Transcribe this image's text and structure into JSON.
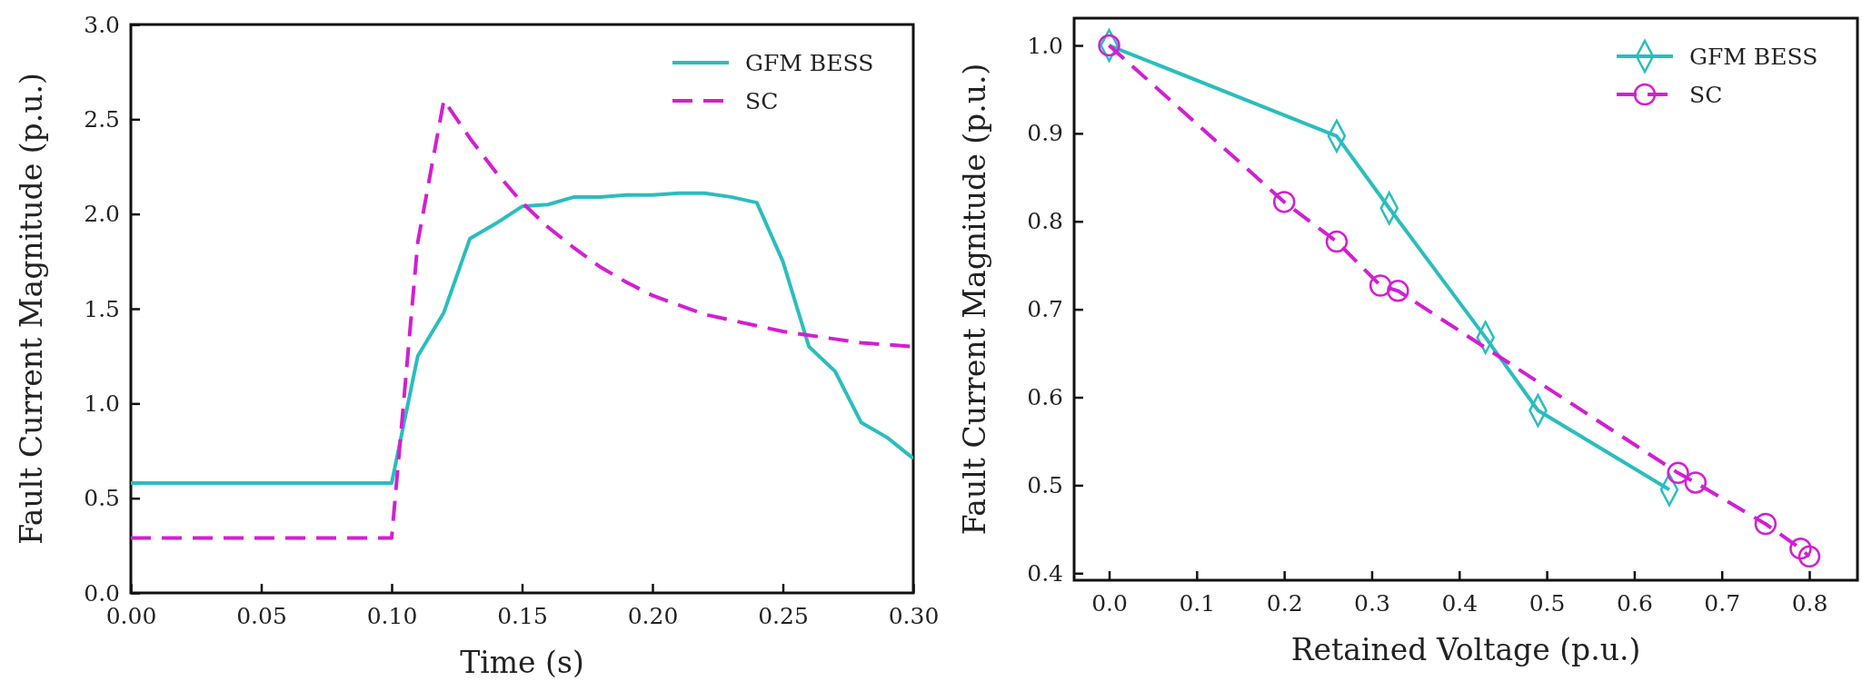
{
  "chart_data": [
    {
      "type": "line",
      "xlabel": "Time (s)",
      "ylabel": "Fault Current Magnitude (p.u.)",
      "xlim": [
        0,
        0.3
      ],
      "ylim": [
        0,
        3
      ],
      "xticks": [
        {
          "value": 0,
          "label": "0.00"
        },
        0.05,
        {
          "value": 0.1,
          "label": "0.10"
        },
        0.15,
        {
          "value": 0.2,
          "label": "0.20"
        },
        0.25,
        {
          "value": 0.3,
          "label": "0.30"
        }
      ],
      "yticks": [
        {
          "value": 0,
          "label": "0.0"
        },
        0.5,
        {
          "value": 1,
          "label": "1.0"
        },
        1.5,
        {
          "value": 2,
          "label": "2.0"
        },
        2.5,
        {
          "value": 3,
          "label": "3.0"
        }
      ],
      "grid": false,
      "legend": "top right",
      "marker": "none",
      "series": [
        {
          "name": "GFM BESS",
          "color": "#2bbdbd",
          "line_style": "solid",
          "x": [
            0,
            0.1,
            0.11,
            0.12,
            0.13,
            0.14,
            0.15,
            0.16,
            0.17,
            0.18,
            0.19,
            0.2,
            0.21,
            0.22,
            0.23,
            0.24,
            0.25,
            0.26,
            0.27,
            0.28,
            0.29,
            0.3
          ],
          "values": [
            0.58,
            0.58,
            1.25,
            1.48,
            1.87,
            1.95,
            2.04,
            2.05,
            2.09,
            2.09,
            2.1,
            2.1,
            2.11,
            2.11,
            2.09,
            2.06,
            1.75,
            1.3,
            1.17,
            0.9,
            0.82,
            0.71
          ]
        },
        {
          "name": "SC",
          "color": "#d21fd2",
          "line_style": "dashed",
          "x": [
            0,
            0.1,
            0.11,
            0.12,
            0.13,
            0.14,
            0.15,
            0.16,
            0.17,
            0.18,
            0.19,
            0.2,
            0.21,
            0.22,
            0.23,
            0.24,
            0.25,
            0.26,
            0.27,
            0.28,
            0.29,
            0.3
          ],
          "values": [
            0.29,
            0.29,
            1.85,
            2.6,
            2.4,
            2.22,
            2.06,
            1.93,
            1.82,
            1.72,
            1.64,
            1.57,
            1.52,
            1.47,
            1.44,
            1.41,
            1.38,
            1.36,
            1.34,
            1.32,
            1.31,
            1.3
          ]
        }
      ]
    },
    {
      "type": "line",
      "xlabel": "Retained Voltage (p.u.)",
      "ylabel": "Fault Current Magnitude (p.u.)",
      "xlim": [
        -0.04,
        0.855
      ],
      "ylim": [
        0.392,
        1.031
      ],
      "xticks": [
        {
          "value": 0,
          "label": "0.0"
        },
        0.1,
        0.2,
        0.3,
        0.4,
        0.5,
        0.6,
        0.7,
        0.8
      ],
      "yticks": [
        0.4,
        0.5,
        0.6,
        0.7,
        0.8,
        0.9,
        {
          "value": 1,
          "label": "1.0"
        }
      ],
      "grid": false,
      "legend": "top right",
      "series": [
        {
          "name": "GFM BESS",
          "color": "#2bbdbd",
          "line_style": "solid",
          "marker": "diamond",
          "x": [
            0,
            0.26,
            0.32,
            0.43,
            0.49,
            0.64
          ],
          "values": [
            1.0,
            0.897,
            0.815,
            0.668,
            0.585,
            0.495
          ]
        },
        {
          "name": "SC",
          "color": "#d21fd2",
          "line_style": "dashed",
          "marker": "circle",
          "x": [
            0,
            0.2,
            0.26,
            0.31,
            0.33,
            0.65,
            0.67,
            0.75,
            0.79,
            0.8
          ],
          "values": [
            1.0,
            0.822,
            0.777,
            0.727,
            0.721,
            0.514,
            0.503,
            0.456,
            0.428,
            0.419
          ]
        }
      ]
    }
  ]
}
